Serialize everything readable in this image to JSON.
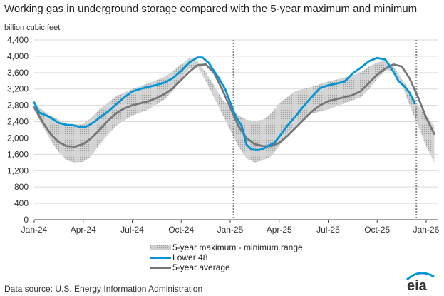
{
  "chart_data": {
    "type": "area",
    "title": "Working gas in underground  storage compared with the 5-year maximum and minimum",
    "ylabel": "billion cubic feet",
    "xlabel": "",
    "ylim": [
      0,
      4400
    ],
    "yticks": [
      0,
      400,
      800,
      1200,
      1600,
      2000,
      2400,
      2800,
      3200,
      3600,
      4000,
      4400
    ],
    "ytick_labels": [
      "0",
      "400",
      "800",
      "1,200",
      "1,600",
      "2,000",
      "2,400",
      "2,800",
      "3,200",
      "3,600",
      "4,000",
      "4,400"
    ],
    "xlim": [
      0,
      24.7
    ],
    "xticks": [
      0,
      3,
      6,
      9,
      12,
      15,
      18,
      21,
      24
    ],
    "xtick_labels": [
      "Jan-24",
      "Apr-24",
      "Jul-24",
      "Oct-24",
      "Jan-25",
      "Apr-25",
      "Jul-25",
      "Oct-25",
      "Jan-26"
    ],
    "x_unit": "months since Jan-24",
    "vertical_markers": [
      12.2,
      23.4
    ],
    "grid": true,
    "legend_position": "bottom",
    "series": [
      {
        "name": "5-year maximum - minimum range",
        "kind": "band",
        "color": "#d0d0d0",
        "x": [
          0,
          0.5,
          1,
          1.5,
          2,
          2.5,
          3,
          3.5,
          4,
          5,
          6,
          7,
          8,
          8.5,
          9,
          9.5,
          10,
          10.5,
          11,
          11.5,
          12,
          12.5,
          13,
          13.5,
          14,
          14.5,
          15,
          15.5,
          16,
          17,
          18,
          19,
          20,
          20.5,
          21,
          21.5,
          22,
          22.5,
          23,
          23.5,
          24,
          24.5
        ],
        "upper": [
          2850,
          2680,
          2550,
          2450,
          2350,
          2330,
          2350,
          2500,
          2700,
          3020,
          3200,
          3340,
          3500,
          3640,
          3800,
          3950,
          3890,
          3600,
          3300,
          2950,
          2750,
          2550,
          2450,
          2420,
          2450,
          2600,
          2850,
          3000,
          3150,
          3250,
          3380,
          3480,
          3600,
          3750,
          3850,
          3900,
          3750,
          3450,
          3150,
          2800,
          2550,
          2300
        ],
        "lower": [
          2700,
          2300,
          1950,
          1650,
          1450,
          1400,
          1420,
          1550,
          1850,
          2300,
          2550,
          2700,
          2950,
          3150,
          3450,
          3700,
          3750,
          3400,
          3000,
          2600,
          2200,
          1800,
          1500,
          1400,
          1450,
          1550,
          1800,
          2100,
          2300,
          2600,
          2700,
          2850,
          3000,
          3200,
          3450,
          3650,
          3650,
          3300,
          2800,
          2300,
          1800,
          1400
        ]
      },
      {
        "name": "Lower 48",
        "kind": "line",
        "color": "#0096d6",
        "x": [
          0,
          0.3,
          0.7,
          1,
          1.5,
          2,
          2.3,
          2.7,
          3,
          3.3,
          3.7,
          4,
          4.5,
          5,
          5.5,
          6,
          6.5,
          7,
          7.5,
          8,
          8.5,
          9,
          9.5,
          10,
          10.3,
          10.7,
          11,
          11.3,
          11.7,
          12,
          12.3,
          12.7,
          13,
          13.3,
          13.7,
          14,
          14.3,
          14.7,
          15,
          15.5,
          16,
          16.5,
          17,
          17.5,
          18,
          18.5,
          19,
          19.5,
          20,
          20.5,
          21,
          21.5,
          22,
          22.3,
          22.7,
          23,
          23.3
        ],
        "y": [
          2870,
          2620,
          2560,
          2500,
          2370,
          2320,
          2320,
          2280,
          2260,
          2300,
          2400,
          2500,
          2640,
          2820,
          2990,
          3140,
          3200,
          3250,
          3300,
          3360,
          3470,
          3640,
          3850,
          3970,
          3970,
          3830,
          3640,
          3470,
          3190,
          2880,
          2560,
          2300,
          1840,
          1720,
          1700,
          1730,
          1800,
          1880,
          2030,
          2300,
          2530,
          2780,
          3010,
          3220,
          3290,
          3330,
          3380,
          3580,
          3720,
          3880,
          3960,
          3920,
          3620,
          3400,
          3250,
          3100,
          2850
        ]
      },
      {
        "name": "5-year average",
        "kind": "line",
        "color": "#767676",
        "x": [
          0,
          0.5,
          1,
          1.5,
          2,
          2.5,
          3,
          3.5,
          4,
          4.5,
          5,
          5.5,
          6,
          6.5,
          7,
          7.5,
          8,
          8.5,
          9,
          9.5,
          10,
          10.5,
          11,
          11.5,
          12,
          12.5,
          13,
          13.5,
          14,
          14.5,
          15,
          15.5,
          16,
          16.5,
          17,
          17.5,
          18,
          18.5,
          19,
          19.5,
          20,
          20.5,
          21,
          21.5,
          22,
          22.5,
          23,
          23.5,
          24,
          24.5
        ],
        "y": [
          2750,
          2400,
          2100,
          1900,
          1800,
          1790,
          1850,
          2000,
          2200,
          2420,
          2600,
          2720,
          2800,
          2850,
          2900,
          2980,
          3080,
          3220,
          3420,
          3620,
          3780,
          3800,
          3600,
          3200,
          2750,
          2300,
          2000,
          1850,
          1800,
          1800,
          1880,
          2050,
          2250,
          2450,
          2650,
          2800,
          2900,
          2950,
          3000,
          3050,
          3150,
          3350,
          3550,
          3700,
          3800,
          3750,
          3450,
          3000,
          2500,
          2100
        ]
      }
    ]
  },
  "source": "Data source:  U.S. Energy Information Administration",
  "logo_text": "eia"
}
